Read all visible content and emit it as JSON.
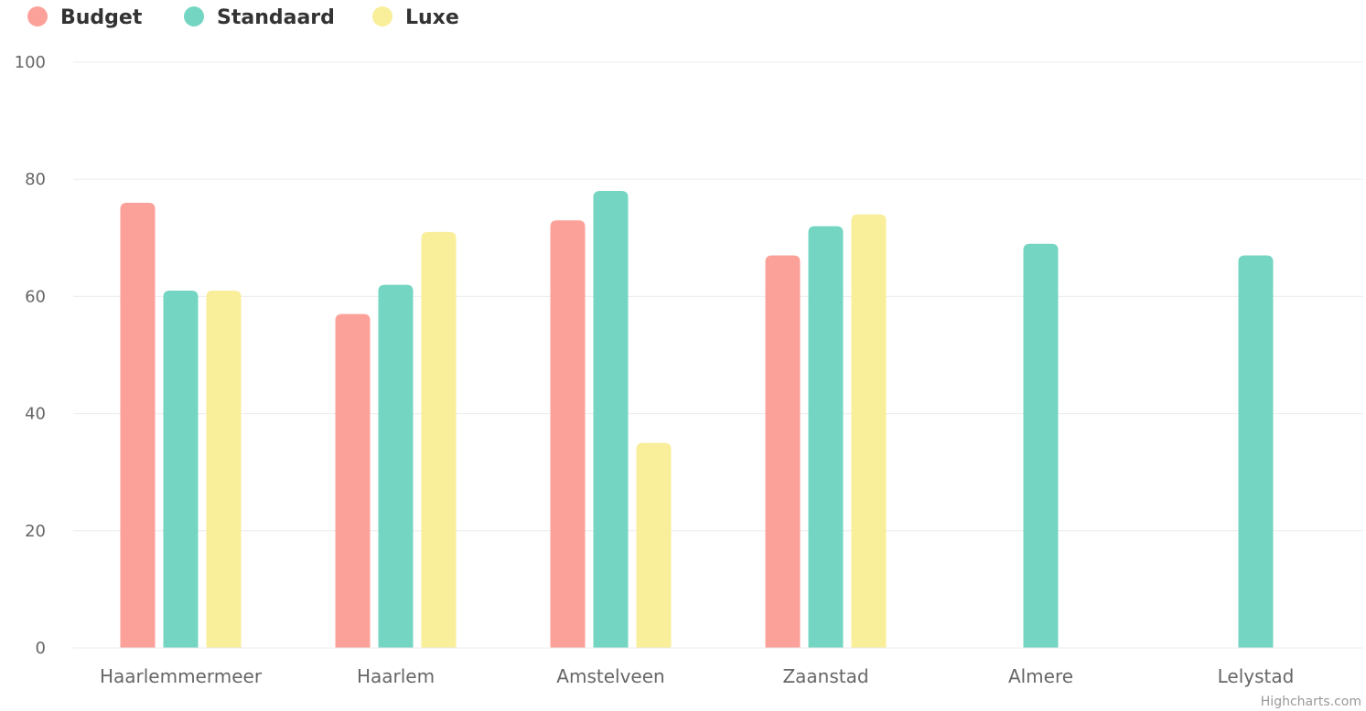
{
  "chart_data": {
    "type": "bar",
    "title": "",
    "xlabel": "",
    "ylabel": "",
    "categories": [
      "Haarlemmermeer",
      "Haarlem",
      "Amstelveen",
      "Zaanstad",
      "Almere",
      "Lelystad"
    ],
    "series": [
      {
        "name": "Budget",
        "color": "#fca19a",
        "values": [
          76,
          57,
          73,
          67,
          null,
          null
        ]
      },
      {
        "name": "Standaard",
        "color": "#74d6c2",
        "values": [
          61,
          62,
          78,
          72,
          69,
          67
        ]
      },
      {
        "name": "Luxe",
        "color": "#f9ee9a",
        "values": [
          61,
          71,
          35,
          74,
          null,
          null
        ]
      }
    ],
    "ylim": [
      0,
      100
    ],
    "yticks": [
      0,
      20,
      40,
      60,
      80,
      100
    ],
    "grid": true,
    "legend_position": "top-left"
  },
  "credits": "Highcharts.com"
}
